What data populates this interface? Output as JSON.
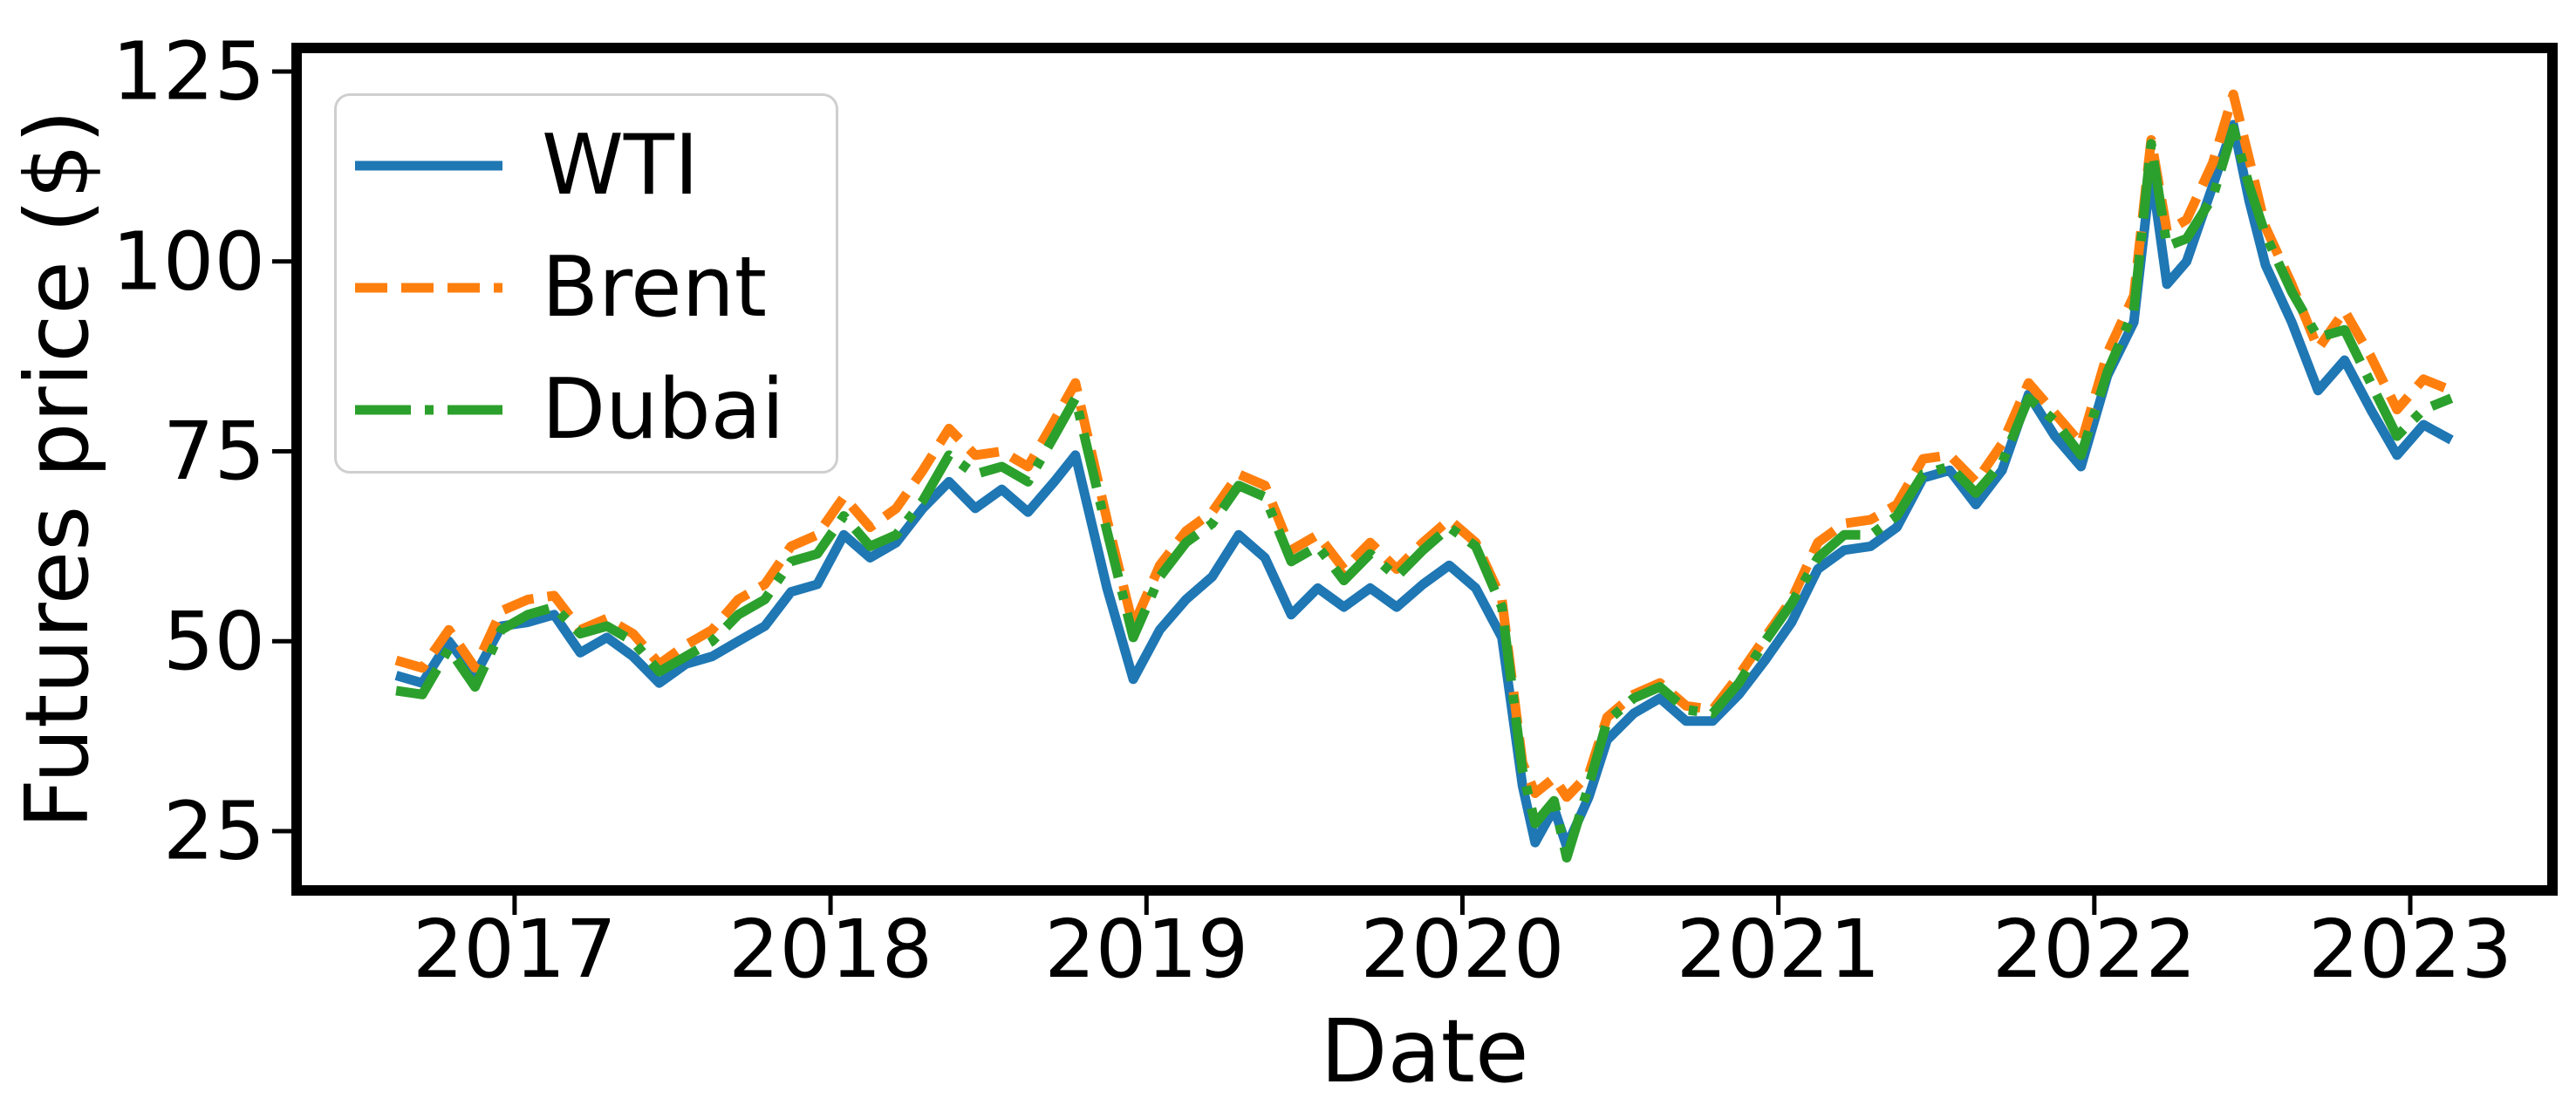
{
  "figure": {
    "background_color": "#ffffff",
    "axes_border_color": "#000000"
  },
  "chart_data": {
    "type": "line",
    "title": "",
    "xlabel": "Date",
    "ylabel": "Futures price ($)",
    "x_unit": "decimal_year",
    "xlim": [
      2016.31,
      2023.45
    ],
    "ylim": [
      17.2,
      128.1
    ],
    "xticks": [
      2017,
      2018,
      2019,
      2020,
      2021,
      2022,
      2023
    ],
    "yticks": [
      25,
      50,
      75,
      100,
      125
    ],
    "grid": false,
    "legend_position": "upper-left",
    "x": [
      2016.625,
      2016.708,
      2016.792,
      2016.875,
      2016.958,
      2017.042,
      2017.125,
      2017.208,
      2017.292,
      2017.375,
      2017.458,
      2017.542,
      2017.625,
      2017.708,
      2017.792,
      2017.875,
      2017.958,
      2018.042,
      2018.125,
      2018.208,
      2018.292,
      2018.375,
      2018.458,
      2018.542,
      2018.625,
      2018.708,
      2018.775,
      2018.875,
      2018.958,
      2019.042,
      2019.125,
      2019.208,
      2019.292,
      2019.375,
      2019.458,
      2019.542,
      2019.625,
      2019.708,
      2019.792,
      2019.875,
      2019.958,
      2020.042,
      2020.125,
      2020.19,
      2020.23,
      2020.29,
      2020.33,
      2020.4,
      2020.458,
      2020.542,
      2020.625,
      2020.708,
      2020.792,
      2020.875,
      2020.958,
      2021.042,
      2021.125,
      2021.208,
      2021.292,
      2021.375,
      2021.458,
      2021.542,
      2021.625,
      2021.708,
      2021.792,
      2021.875,
      2021.958,
      2022.042,
      2022.125,
      2022.18,
      2022.23,
      2022.292,
      2022.375,
      2022.44,
      2022.49,
      2022.542,
      2022.625,
      2022.708,
      2022.792,
      2022.875,
      2022.958,
      2023.042,
      2023.13
    ],
    "series": [
      {
        "name": "WTI",
        "color": "#1f77b4",
        "style": "solid",
        "values": [
          45.5,
          44.5,
          50.0,
          45.5,
          52.0,
          52.5,
          53.5,
          48.5,
          50.5,
          48.0,
          44.5,
          47.0,
          48.0,
          50.0,
          52.0,
          56.5,
          57.5,
          64.0,
          61.0,
          63.0,
          67.5,
          71.0,
          67.5,
          70.0,
          67.0,
          71.0,
          74.5,
          57.0,
          45.0,
          51.5,
          55.5,
          58.5,
          64.0,
          61.0,
          53.5,
          57.0,
          54.5,
          57.0,
          54.5,
          57.5,
          60.0,
          57.0,
          50.5,
          31.0,
          23.5,
          28.0,
          23.0,
          29.5,
          37.0,
          40.5,
          42.5,
          39.5,
          39.5,
          43.0,
          47.5,
          52.5,
          59.5,
          62.0,
          62.5,
          65.0,
          71.5,
          72.5,
          68.0,
          72.5,
          82.5,
          77.0,
          73.0,
          85.0,
          92.0,
          112.0,
          97.0,
          100.0,
          110.0,
          118.0,
          108.0,
          99.5,
          92.0,
          83.0,
          87.0,
          80.5,
          74.5,
          78.5,
          76.5
        ]
      },
      {
        "name": "Brent",
        "color": "#ff7f0e",
        "style": "dashed",
        "values": [
          47.5,
          46.5,
          51.5,
          46.5,
          54.0,
          55.5,
          56.0,
          51.5,
          53.0,
          51.0,
          47.0,
          49.5,
          51.5,
          55.5,
          57.5,
          62.5,
          64.0,
          69.0,
          65.0,
          67.5,
          72.5,
          78.0,
          74.5,
          75.0,
          73.0,
          79.0,
          84.0,
          66.0,
          52.0,
          60.0,
          64.5,
          67.0,
          72.0,
          70.5,
          62.0,
          64.0,
          59.5,
          63.0,
          59.5,
          63.0,
          66.0,
          63.0,
          55.5,
          34.0,
          30.0,
          32.0,
          29.5,
          32.5,
          40.0,
          43.0,
          44.5,
          41.5,
          41.0,
          45.5,
          50.5,
          55.5,
          63.0,
          65.5,
          66.0,
          68.0,
          74.0,
          74.5,
          71.0,
          76.0,
          84.0,
          80.0,
          76.0,
          88.0,
          95.5,
          116.0,
          104.0,
          105.5,
          113.0,
          122.0,
          113.5,
          104.5,
          97.0,
          88.5,
          93.5,
          87.5,
          80.5,
          84.5,
          83.0
        ]
      },
      {
        "name": "Dubai",
        "color": "#2ca02c",
        "style": "dashdot",
        "values": [
          43.5,
          43.0,
          49.0,
          44.0,
          51.5,
          53.5,
          54.5,
          51.0,
          52.0,
          50.0,
          46.0,
          48.0,
          50.0,
          53.5,
          55.5,
          60.5,
          61.5,
          66.5,
          62.5,
          64.0,
          68.5,
          74.5,
          72.0,
          73.0,
          71.0,
          77.0,
          82.0,
          64.5,
          50.5,
          58.5,
          63.0,
          65.5,
          70.5,
          69.0,
          60.5,
          62.5,
          58.0,
          61.5,
          58.5,
          62.0,
          65.0,
          62.5,
          54.5,
          33.0,
          26.0,
          29.0,
          21.5,
          31.0,
          39.5,
          42.5,
          44.0,
          41.0,
          40.5,
          44.5,
          50.0,
          55.0,
          61.0,
          64.0,
          64.0,
          66.5,
          72.0,
          73.0,
          69.5,
          73.5,
          82.0,
          79.0,
          74.5,
          85.5,
          93.5,
          115.5,
          102.0,
          103.0,
          108.5,
          117.5,
          110.0,
          103.5,
          96.0,
          90.0,
          91.0,
          84.0,
          77.0,
          80.5,
          82.0
        ]
      }
    ]
  }
}
